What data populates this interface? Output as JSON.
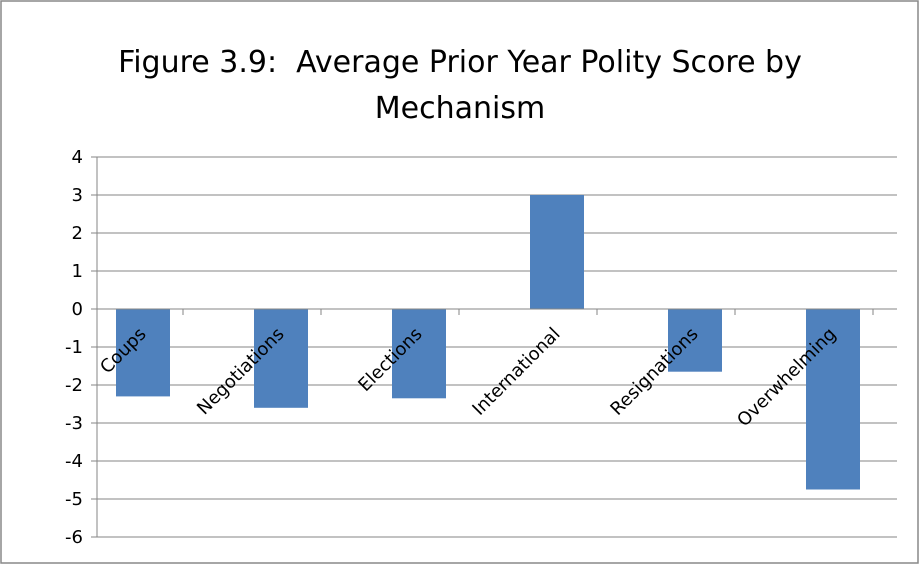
{
  "chart_data": {
    "type": "bar",
    "title": "Figure 3.9:  Average Prior Year Polity Score by Mechanism",
    "categories": [
      "Coups",
      "Negotiations",
      "Elections",
      "International",
      "Resignations",
      "Overwhelming"
    ],
    "values": [
      -2.3,
      -2.6,
      -2.35,
      3.0,
      -1.65,
      -4.75
    ],
    "color": "#4f81bd",
    "ylim": [
      -6,
      4
    ],
    "yticks": [
      -6,
      -5,
      -4,
      -3,
      -2,
      -1,
      0,
      1,
      2,
      3,
      4
    ],
    "grid": true
  }
}
